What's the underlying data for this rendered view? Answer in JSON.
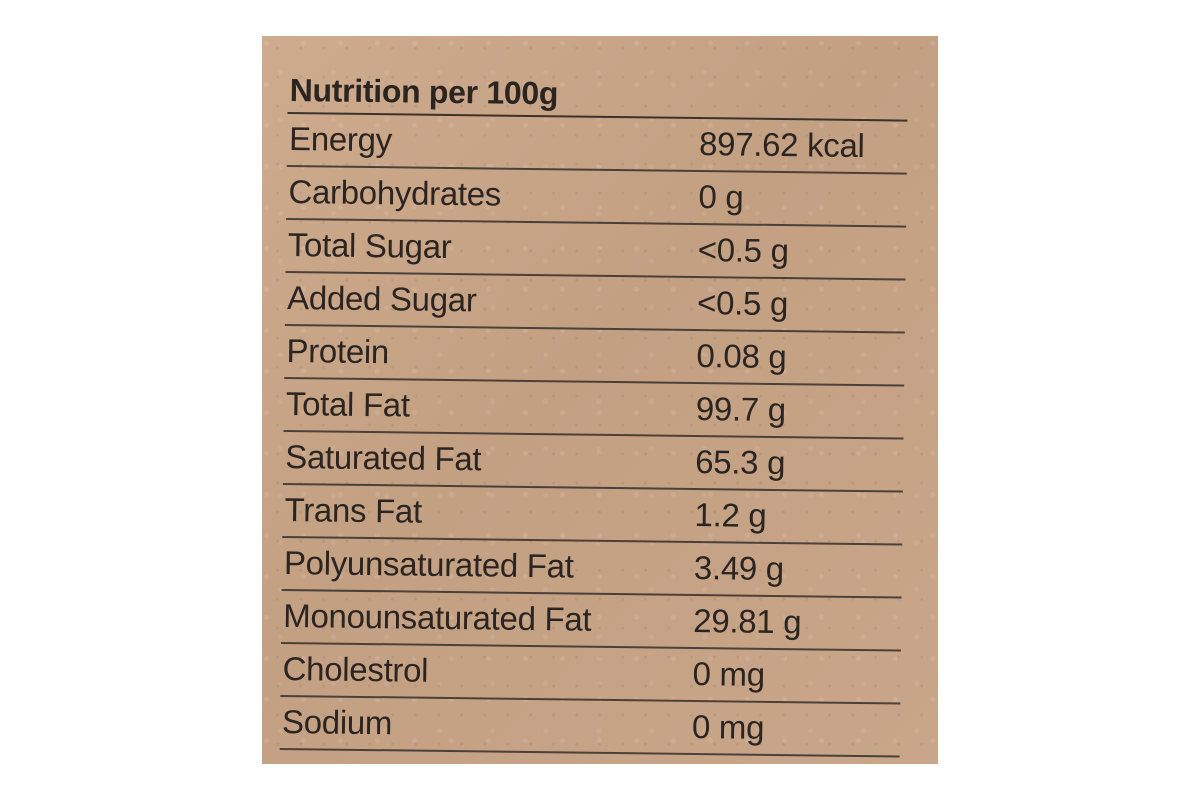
{
  "label": {
    "title": "Nutrition per 100g",
    "rows": [
      {
        "name": "Energy",
        "value": "897.62 kcal"
      },
      {
        "name": "Carbohydrates",
        "value": "0 g"
      },
      {
        "name": "Total Sugar",
        "value": "<0.5 g"
      },
      {
        "name": "Added Sugar",
        "value": "<0.5 g"
      },
      {
        "name": "Protein",
        "value": "0.08 g"
      },
      {
        "name": "Total Fat",
        "value": "99.7 g"
      },
      {
        "name": "Saturated Fat",
        "value": "65.3 g"
      },
      {
        "name": "Trans Fat",
        "value": "1.2 g"
      },
      {
        "name": "Polyunsaturated Fat",
        "value": "3.49 g"
      },
      {
        "name": "Monounsaturated Fat",
        "value": "29.81 g"
      },
      {
        "name": "Cholestrol",
        "value": "0 mg"
      },
      {
        "name": "Sodium",
        "value": "0 mg"
      }
    ]
  },
  "colors": {
    "background": "#c9a587",
    "text": "#2a2521"
  }
}
